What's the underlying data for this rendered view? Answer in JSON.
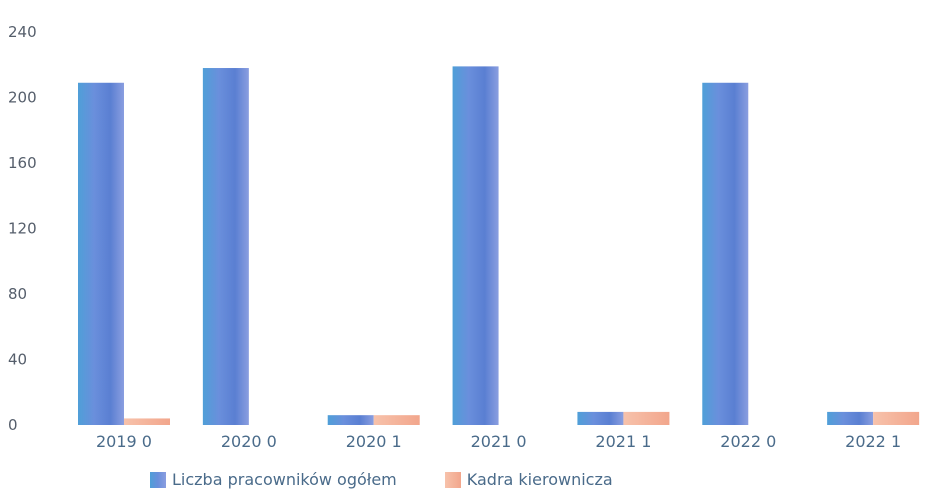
{
  "chart_data": {
    "type": "bar",
    "categories": [
      "2019 0",
      "2020 0",
      "2020 1",
      "2021 0",
      "2021 1",
      "2022 0",
      "2022 1"
    ],
    "series": [
      {
        "name": "Liczba pracowników ogółem",
        "color": "#5b8fd6",
        "values": [
          209,
          218,
          6,
          219,
          8,
          209,
          8
        ]
      },
      {
        "name": "Kadra kierownicza",
        "color": "#f5b8a0",
        "values": [
          4,
          0,
          6,
          0,
          8,
          0,
          8
        ]
      }
    ],
    "yticks": [
      0,
      40,
      80,
      120,
      160,
      200,
      240
    ],
    "ylim": [
      0,
      240
    ],
    "grid": false,
    "legend_position": "bottom"
  }
}
